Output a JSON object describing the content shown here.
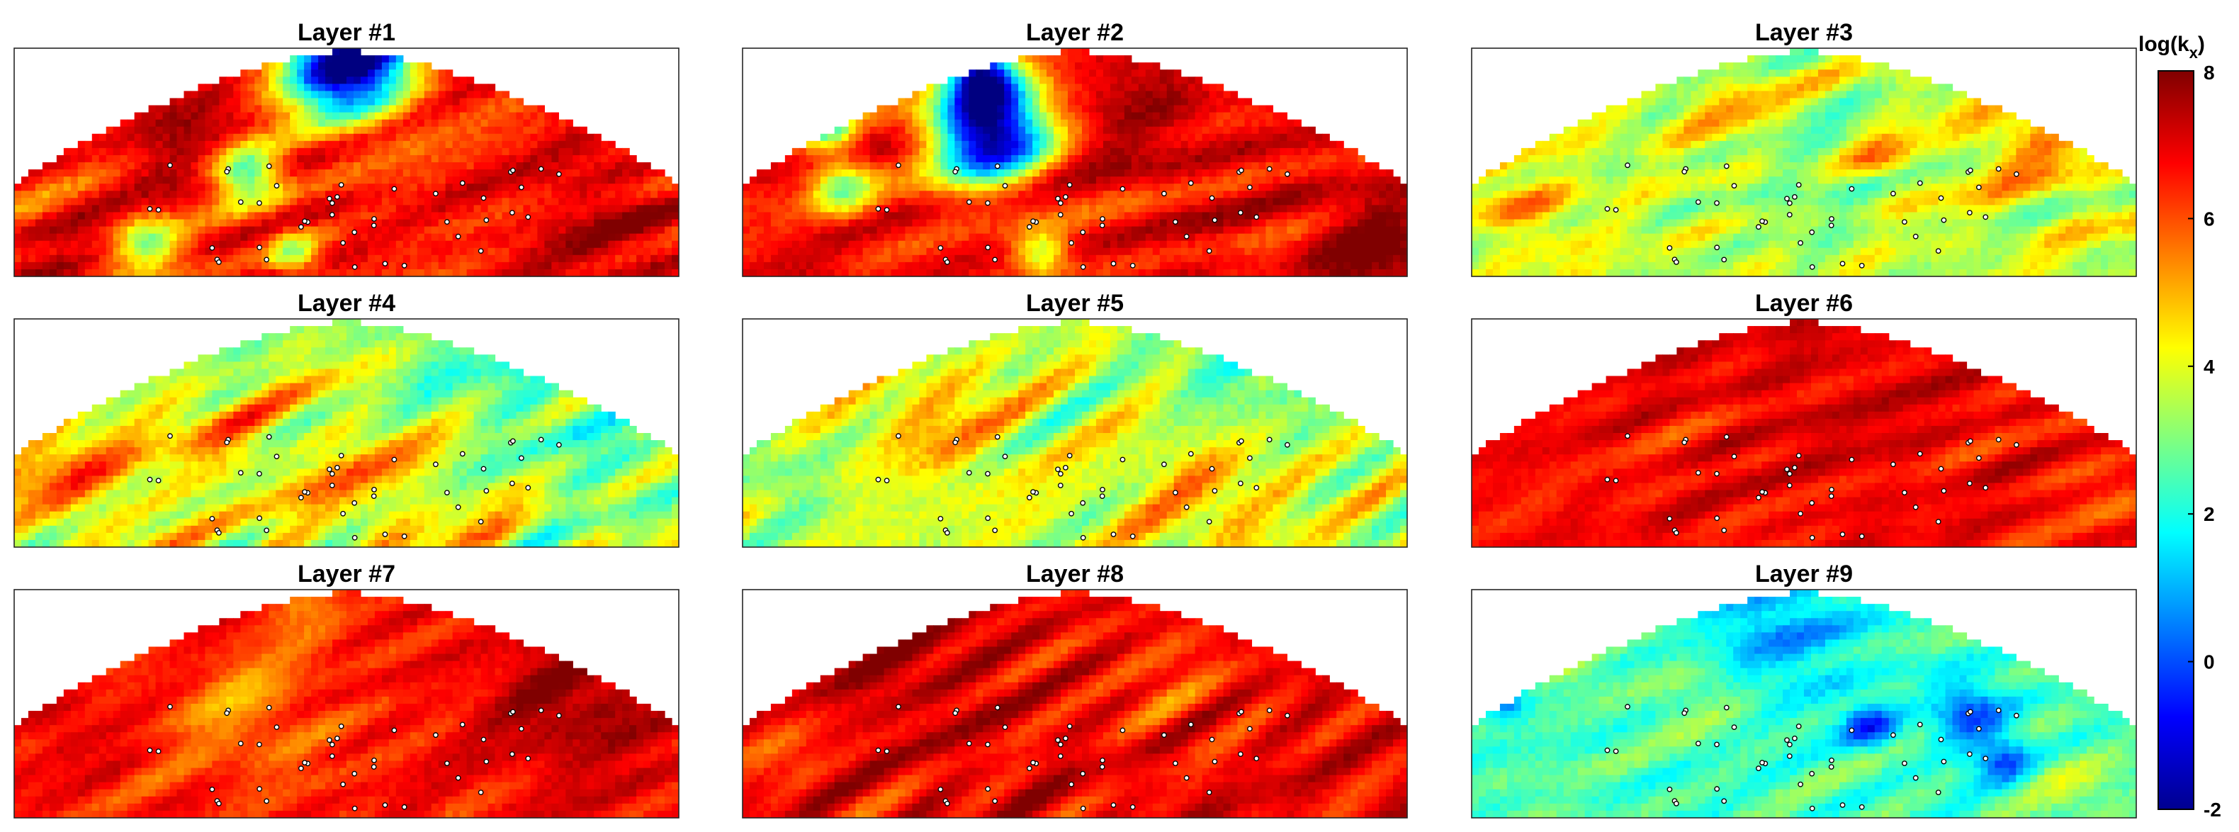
{
  "chart_data": {
    "type": "heatmap",
    "colormap": "jet",
    "panels": [
      {
        "title": "Layer #1",
        "mean": 6.6,
        "amp": 0.7,
        "seed": 11,
        "lows": [
          {
            "u": 0.5,
            "v": 0.05,
            "r": 0.1,
            "d": 9.0
          },
          {
            "u": 0.35,
            "v": 0.55,
            "r": 0.05,
            "d": 4.5
          },
          {
            "u": 0.2,
            "v": 0.85,
            "r": 0.05,
            "d": 3.0
          },
          {
            "u": 0.42,
            "v": 0.9,
            "r": 0.04,
            "d": 3.0
          }
        ],
        "highs": [
          {
            "u": 0.25,
            "v": 0.35,
            "r": 0.1,
            "d": 1.0
          },
          {
            "u": 0.9,
            "v": 0.8,
            "r": 0.12,
            "d": 0.8
          }
        ]
      },
      {
        "title": "Layer #2",
        "mean": 6.7,
        "amp": 0.6,
        "seed": 23,
        "lows": [
          {
            "u": 0.37,
            "v": 0.35,
            "r": 0.09,
            "d": 9.0
          },
          {
            "u": 0.36,
            "v": 0.12,
            "r": 0.05,
            "d": 6.0
          },
          {
            "u": 0.15,
            "v": 0.6,
            "r": 0.05,
            "d": 3.5
          },
          {
            "u": 0.45,
            "v": 0.9,
            "r": 0.04,
            "d": 3.0
          },
          {
            "u": 0.13,
            "v": 0.35,
            "r": 0.04,
            "d": 3.5
          }
        ],
        "highs": [
          {
            "u": 0.95,
            "v": 0.85,
            "r": 0.1,
            "d": 1.3
          },
          {
            "u": 0.6,
            "v": 0.3,
            "r": 0.12,
            "d": 0.8
          }
        ]
      },
      {
        "title": "Layer #3",
        "mean": 3.7,
        "amp": 0.6,
        "seed": 37,
        "lows": [
          {
            "u": 0.5,
            "v": 0.55,
            "r": 0.12,
            "d": 0.8
          }
        ],
        "highs": [
          {
            "u": 0.85,
            "v": 0.4,
            "r": 0.1,
            "d": 1.5
          },
          {
            "u": 0.62,
            "v": 0.5,
            "r": 0.05,
            "d": 1.5
          },
          {
            "u": 0.08,
            "v": 0.7,
            "r": 0.07,
            "d": 1.4
          },
          {
            "u": 0.4,
            "v": 0.3,
            "r": 0.08,
            "d": 1.0
          }
        ]
      },
      {
        "title": "Layer #4",
        "mean": 4.0,
        "amp": 0.7,
        "seed": 41,
        "lows": [
          {
            "u": 0.7,
            "v": 0.15,
            "r": 0.18,
            "d": 1.5
          },
          {
            "u": 0.9,
            "v": 0.6,
            "r": 0.12,
            "d": 1.2
          }
        ],
        "highs": [
          {
            "u": 0.08,
            "v": 0.65,
            "r": 0.1,
            "d": 1.5
          },
          {
            "u": 0.55,
            "v": 0.7,
            "r": 0.12,
            "d": 1.0
          },
          {
            "u": 0.3,
            "v": 0.5,
            "r": 0.08,
            "d": 0.8
          }
        ]
      },
      {
        "title": "Layer #5",
        "mean": 3.8,
        "amp": 0.7,
        "seed": 53,
        "lows": [
          {
            "u": 0.75,
            "v": 0.2,
            "r": 0.15,
            "d": 1.3
          },
          {
            "u": 0.05,
            "v": 0.7,
            "r": 0.08,
            "d": 1.0
          }
        ],
        "highs": [
          {
            "u": 0.3,
            "v": 0.45,
            "r": 0.1,
            "d": 1.2
          },
          {
            "u": 0.7,
            "v": 0.75,
            "r": 0.12,
            "d": 1.2
          }
        ]
      },
      {
        "title": "Layer #6",
        "mean": 6.7,
        "amp": 0.4,
        "seed": 67,
        "lows": [
          {
            "u": 0.95,
            "v": 0.75,
            "r": 0.06,
            "d": 0.6
          }
        ],
        "highs": [
          {
            "u": 0.55,
            "v": 0.3,
            "r": 0.2,
            "d": 0.4
          }
        ]
      },
      {
        "title": "Layer #7",
        "mean": 6.6,
        "amp": 0.5,
        "seed": 71,
        "lows": [
          {
            "u": 0.35,
            "v": 0.55,
            "r": 0.12,
            "d": 1.2
          },
          {
            "u": 0.45,
            "v": 0.1,
            "r": 0.06,
            "d": 0.8
          }
        ],
        "highs": [
          {
            "u": 0.85,
            "v": 0.5,
            "r": 0.14,
            "d": 1.2
          },
          {
            "u": 0.08,
            "v": 0.6,
            "r": 0.06,
            "d": 0.6
          }
        ]
      },
      {
        "title": "Layer #8",
        "mean": 6.9,
        "amp": 0.45,
        "seed": 83,
        "lows": [
          {
            "u": 0.65,
            "v": 0.4,
            "r": 0.1,
            "d": 0.8
          },
          {
            "u": 0.05,
            "v": 0.7,
            "r": 0.08,
            "d": 0.7
          }
        ],
        "highs": [
          {
            "u": 0.25,
            "v": 0.3,
            "r": 0.12,
            "d": 0.6
          }
        ]
      },
      {
        "title": "Layer #9",
        "mean": 2.5,
        "amp": 0.6,
        "seed": 97,
        "lows": [
          {
            "u": 0.45,
            "v": 0.15,
            "r": 0.14,
            "d": 1.6
          },
          {
            "u": 0.6,
            "v": 0.6,
            "r": 0.04,
            "d": 2.5
          },
          {
            "u": 0.75,
            "v": 0.55,
            "r": 0.06,
            "d": 2.5
          },
          {
            "u": 0.8,
            "v": 0.75,
            "r": 0.04,
            "d": 2.0
          },
          {
            "u": 0.05,
            "v": 0.5,
            "r": 0.03,
            "d": 2.0
          }
        ],
        "highs": [
          {
            "u": 0.35,
            "v": 0.45,
            "r": 0.08,
            "d": 1.0
          },
          {
            "u": 0.15,
            "v": 0.3,
            "r": 0.05,
            "d": 1.2
          },
          {
            "u": 0.9,
            "v": 0.85,
            "r": 0.07,
            "d": 0.8
          }
        ]
      }
    ],
    "colorbar": {
      "label_main": "log(k",
      "label_sub": "x",
      "label_close": ")",
      "min": -2,
      "max": 8,
      "ticks": [
        "8",
        "6",
        "4",
        "2",
        "0",
        "-2"
      ]
    }
  }
}
